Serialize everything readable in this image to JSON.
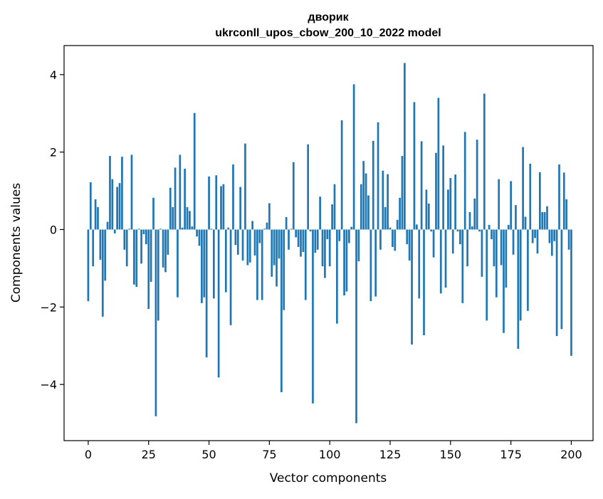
{
  "chart_data": {
    "type": "bar",
    "title": "дворик",
    "subtitle": "ukrconll_upos_cbow_200_10_2022 model",
    "xlabel": "Vector components",
    "ylabel": "Components values",
    "xlim": [
      -10,
      209
    ],
    "ylim": [
      -5.45,
      4.75
    ],
    "xticks": [
      0,
      25,
      50,
      75,
      100,
      125,
      150,
      175,
      200
    ],
    "yticks": [
      -4,
      -2,
      0,
      2,
      4
    ],
    "grid": false,
    "bar_color": "#1f77b4",
    "values": [
      -1.85,
      1.22,
      -0.95,
      0.78,
      0.58,
      -0.78,
      -2.25,
      -1.32,
      0.2,
      1.9,
      1.3,
      -0.1,
      1.1,
      1.2,
      1.88,
      -0.52,
      -0.95,
      0.02,
      1.93,
      -1.42,
      -1.48,
      0.02,
      -0.88,
      -0.12,
      -0.38,
      -2.05,
      -1.35,
      0.82,
      -4.82,
      -2.35,
      0.02,
      -0.98,
      -1.1,
      -0.65,
      1.08,
      0.58,
      1.6,
      -1.75,
      1.93,
      0.05,
      1.57,
      0.58,
      0.48,
      0.08,
      3.01,
      -0.18,
      -0.42,
      -1.9,
      -1.75,
      -3.3,
      1.37,
      0.02,
      -1.78,
      1.4,
      -3.82,
      1.12,
      1.17,
      -1.62,
      0.05,
      -2.47,
      1.68,
      -0.4,
      -0.65,
      1.1,
      -0.8,
      2.22,
      -0.92,
      -0.85,
      0.22,
      -0.67,
      -1.82,
      -0.35,
      -1.82,
      0.02,
      0.18,
      0.68,
      -1.22,
      -0.92,
      -1.47,
      -0.75,
      -4.2,
      -2.08,
      0.32,
      -0.52,
      0.02,
      1.74,
      -0.2,
      -0.45,
      -0.7,
      -0.58,
      -1.82,
      2.2,
      -0.05,
      -4.49,
      -0.6,
      -0.52,
      0.85,
      -0.95,
      -1.25,
      -0.25,
      -0.95,
      0.65,
      1.17,
      -2.43,
      -0.3,
      2.82,
      -1.7,
      -1.6,
      -0.35,
      0.07,
      3.75,
      -5.0,
      -0.82,
      1.17,
      1.77,
      1.45,
      0.88,
      -1.85,
      2.29,
      -1.73,
      2.77,
      -0.52,
      1.52,
      0.58,
      1.43,
      0.05,
      -0.45,
      -0.55,
      0.25,
      0.82,
      1.9,
      4.3,
      -0.38,
      -0.8,
      -2.97,
      3.29,
      0.13,
      -1.78,
      2.28,
      -2.73,
      1.03,
      0.67,
      -0.05,
      -0.72,
      1.98,
      3.4,
      -1.65,
      2.17,
      -1.5,
      1.03,
      1.33,
      -0.62,
      1.42,
      -0.05,
      -0.38,
      -1.9,
      2.52,
      -0.95,
      0.45,
      0.08,
      0.8,
      2.32,
      -0.05,
      -1.22,
      3.51,
      -2.35,
      0.12,
      -0.25,
      -0.95,
      -1.75,
      1.3,
      -0.92,
      -2.67,
      -1.5,
      0.12,
      1.25,
      -0.65,
      0.63,
      -3.08,
      -2.35,
      2.13,
      0.33,
      -2.1,
      1.7,
      -0.35,
      -0.22,
      -0.62,
      1.48,
      0.45,
      0.45,
      0.6,
      -0.35,
      -0.68,
      -0.3,
      -2.75,
      1.68,
      -2.57,
      1.47,
      0.78,
      -0.52,
      -3.26
    ]
  }
}
